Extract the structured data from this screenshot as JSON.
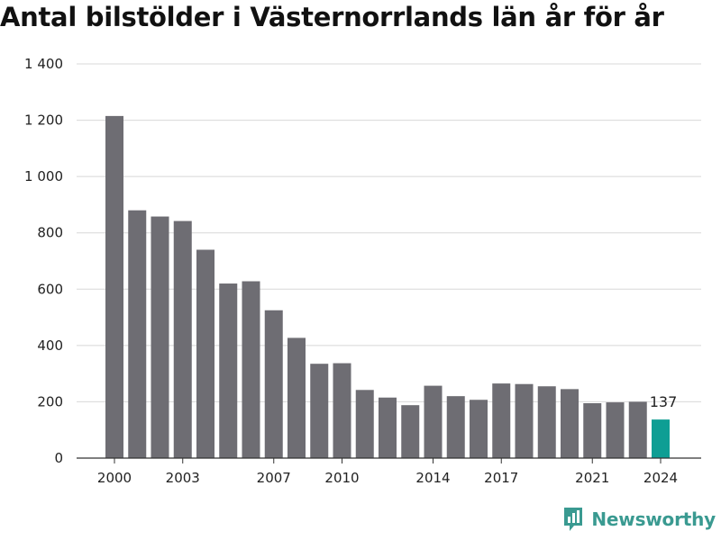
{
  "chart_data": {
    "type": "bar",
    "title": "Antal bilstölder i Västernorrlands län år för år",
    "xlabel": "",
    "ylabel": "",
    "categories": [
      "2000",
      "2001",
      "2002",
      "2003",
      "2004",
      "2005",
      "2006",
      "2007",
      "2008",
      "2009",
      "2010",
      "2011",
      "2012",
      "2013",
      "2014",
      "2015",
      "2016",
      "2017",
      "2018",
      "2019",
      "2020",
      "2021",
      "2022",
      "2023",
      "2024"
    ],
    "values": [
      1215,
      880,
      858,
      842,
      740,
      620,
      628,
      525,
      427,
      335,
      337,
      242,
      215,
      188,
      257,
      220,
      207,
      265,
      263,
      255,
      245,
      195,
      198,
      200,
      137
    ],
    "x_tick_labels": [
      "2000",
      "2003",
      "2007",
      "2010",
      "2014",
      "2017",
      "2021",
      "2024"
    ],
    "y_tick_labels": [
      "0",
      "200",
      "400",
      "600",
      "800",
      "1 000",
      "1 200",
      "1 400"
    ],
    "y_ticks": [
      0,
      200,
      400,
      600,
      800,
      1000,
      1200,
      1400
    ],
    "ylim": [
      0,
      1400
    ],
    "grid": true,
    "highlight": {
      "category": "2024",
      "label": "137"
    },
    "colors": {
      "bar": "#6e6d73",
      "highlight": "#0e9e94",
      "grid": "#d8d8d8",
      "axis": "#333333"
    }
  },
  "brand": {
    "name": "Newsworthy",
    "icon": "bar-chart-logo-icon",
    "color": "#3a9a91"
  }
}
